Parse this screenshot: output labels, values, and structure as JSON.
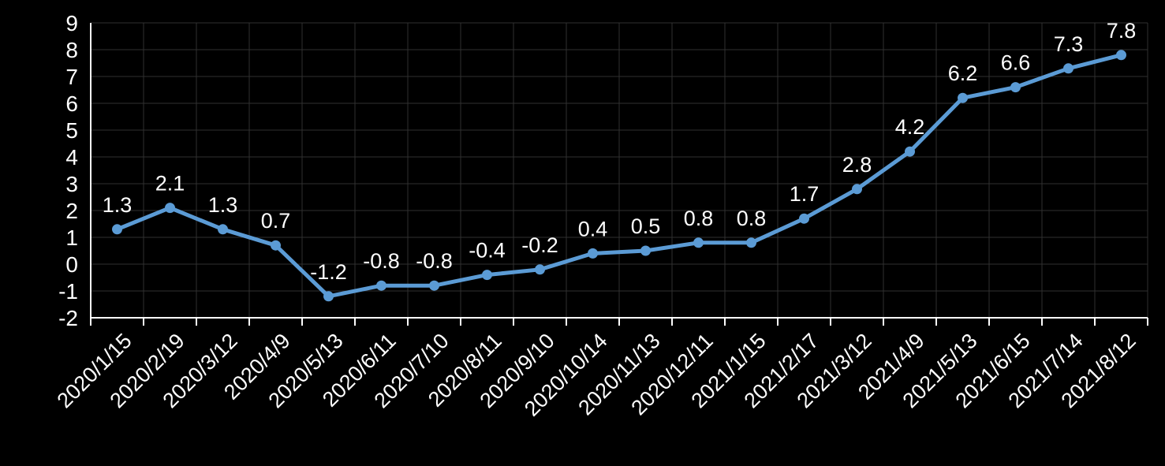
{
  "chart_data": {
    "type": "line",
    "title": "",
    "categories": [
      "2020/1/15",
      "2020/2/19",
      "2020/3/12",
      "2020/4/9",
      "2020/5/13",
      "2020/6/11",
      "2020/7/10",
      "2020/8/11",
      "2020/9/10",
      "2020/10/14",
      "2020/11/13",
      "2020/12/11",
      "2021/1/15",
      "2021/2/17",
      "2021/3/12",
      "2021/4/9",
      "2021/5/13",
      "2021/6/15",
      "2021/7/14",
      "2021/8/12"
    ],
    "values": [
      1.3,
      2.1,
      1.3,
      0.7,
      -1.2,
      -0.8,
      -0.8,
      -0.4,
      -0.2,
      0.4,
      0.5,
      0.8,
      0.8,
      1.7,
      2.8,
      4.2,
      6.2,
      6.6,
      7.3,
      7.8
    ],
    "data_labels": [
      "1.3",
      "2.1",
      "1.3",
      "0.7",
      "-1.2",
      "-0.8",
      "-0.8",
      "-0.4",
      "-0.2",
      "0.4",
      "0.5",
      "0.8",
      "0.8",
      "1.7",
      "2.8",
      "4.2",
      "6.2",
      "6.6",
      "7.3",
      "7.8"
    ],
    "xlabel": "",
    "ylabel": "",
    "ylim": [
      -2,
      9
    ],
    "y_tick_step": 1,
    "y_tick_labels": [
      "9",
      "8",
      "7",
      "6",
      "5",
      "4",
      "3",
      "2",
      "1",
      "0",
      "-1",
      "-2"
    ],
    "x_label_rotation_deg": -45,
    "grid": true,
    "legend_position": "none",
    "marker_shape": "circle",
    "colors": {
      "background": "#000000",
      "series_line": "#5B9BD5",
      "series_marker": "#5B9BD5",
      "gridline": "#303030",
      "axis_line": "#FFFFFF",
      "tick_mark": "#FFFFFF",
      "axis_text": "#FFFFFF",
      "data_label_text": "#FFFFFF"
    }
  }
}
